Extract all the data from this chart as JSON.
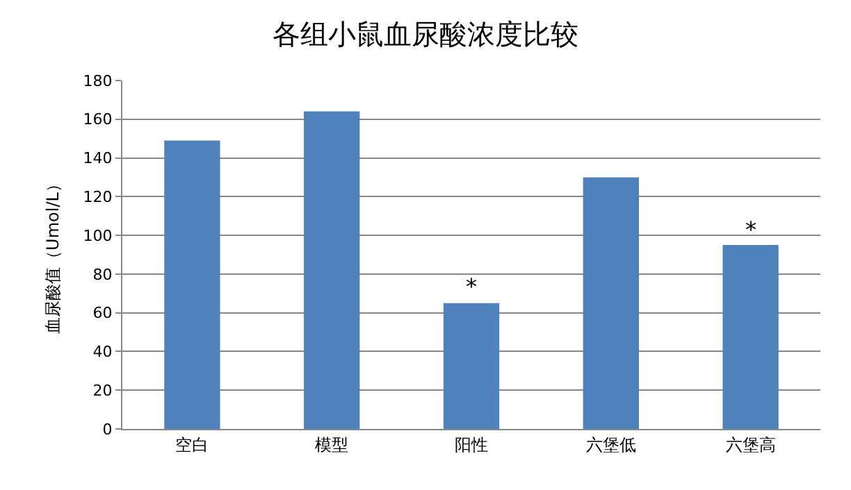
{
  "chart_data": {
    "type": "bar",
    "title": "各组小鼠血尿酸浓度比较",
    "ylabel": "血尿酸值（Umol/L）",
    "categories": [
      "空白",
      "模型",
      "阳性",
      "六堡低",
      "六堡高"
    ],
    "values": [
      149,
      164,
      65,
      130,
      95
    ],
    "color": "#4f81bd",
    "ylim": [
      0,
      180
    ],
    "yticks": [
      0,
      20,
      40,
      60,
      80,
      100,
      120,
      140,
      160,
      180
    ],
    "grid": "y",
    "annotations": [
      {
        "text": "*",
        "x": "阳性",
        "y": 65
      },
      {
        "text": "*",
        "x": "六堡高",
        "y": 95
      }
    ]
  }
}
